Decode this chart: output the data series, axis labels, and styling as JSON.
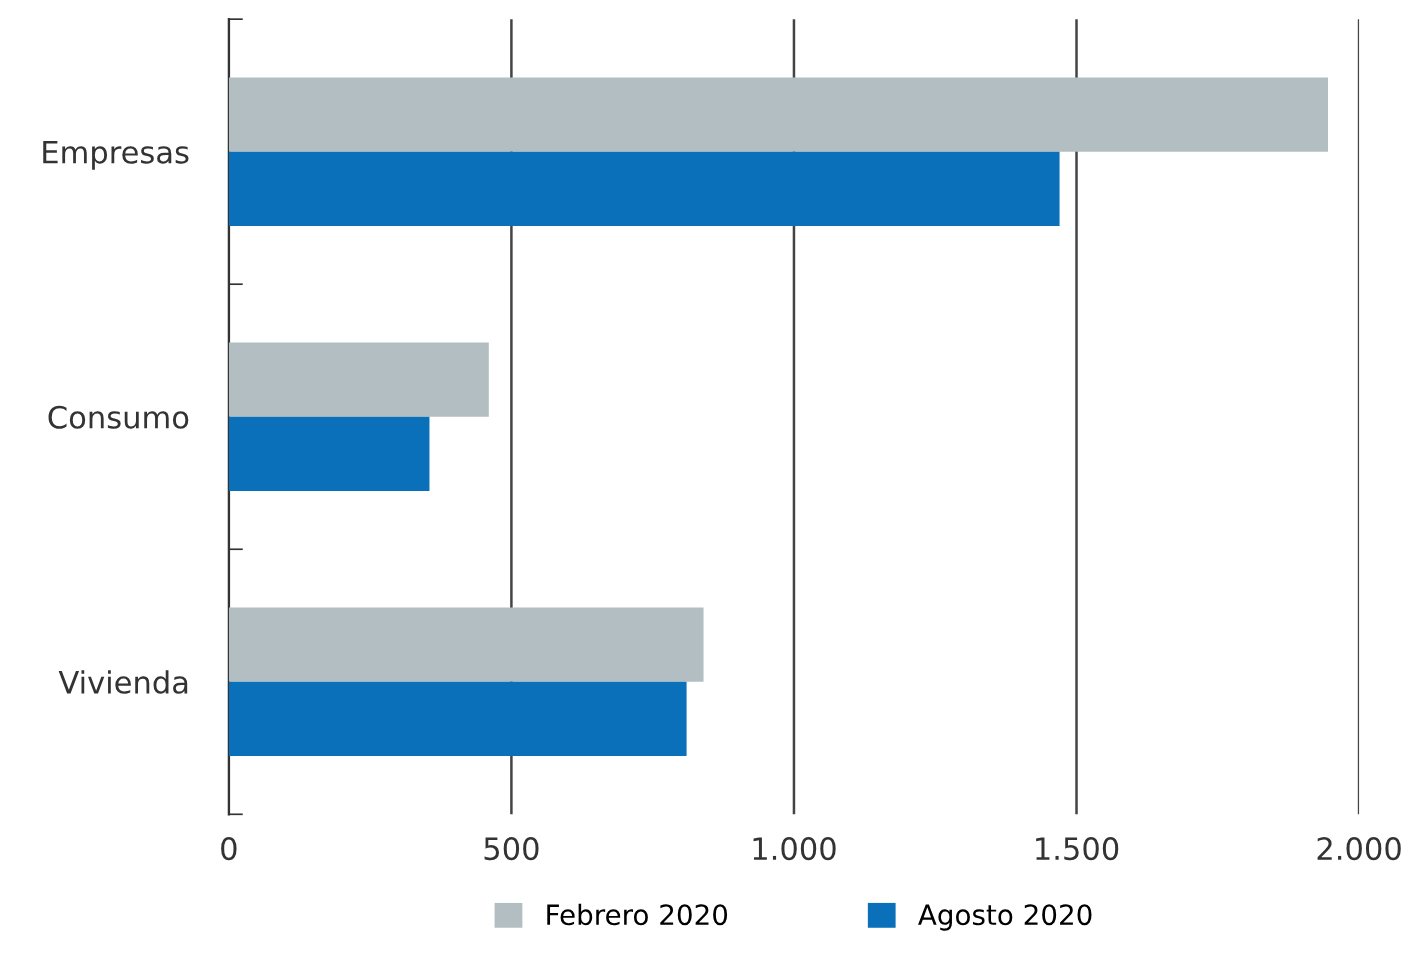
{
  "chart_data": {
    "type": "bar",
    "orientation": "horizontal",
    "categories": [
      "Empresas",
      "Consumo",
      "Vivienda"
    ],
    "series": [
      {
        "name": "Febrero 2020",
        "color": "#b3bec2",
        "values": [
          1945,
          460,
          840
        ]
      },
      {
        "name": "Agosto 2020",
        "color": "#0a70b9",
        "values": [
          1470,
          355,
          810
        ]
      }
    ],
    "xlim": [
      0,
      2000
    ],
    "xticks": [
      0,
      500,
      {
        "value": 1000,
        "label": "1.000"
      },
      {
        "value": 1500,
        "label": "1.500"
      },
      {
        "value": 2000,
        "label": "2.000"
      }
    ],
    "grid": "x",
    "legend": "bottom"
  }
}
